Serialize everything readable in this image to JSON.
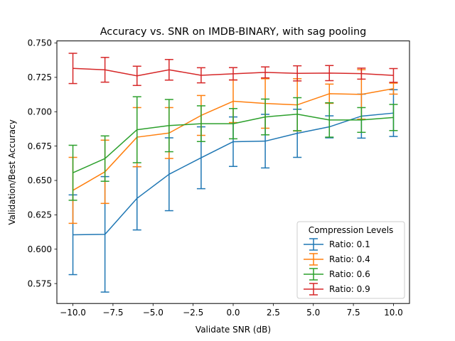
{
  "chart_data": {
    "type": "line",
    "title": "Accuracy vs. SNR on IMDB-BINARY, with sag pooling",
    "xlabel": "Validate SNR (dB)",
    "ylabel": "Validation/Best Accuracy",
    "xlim": [
      -11,
      11
    ],
    "ylim": [
      0.5605,
      0.7515
    ],
    "grid": false,
    "legend_placement": "lower-right",
    "legend_title": "Compression Levels",
    "x": [
      -10,
      -8,
      -6,
      -4,
      -2,
      0,
      2,
      4,
      6,
      8,
      10
    ],
    "x_ticks": [
      -10.0,
      -7.5,
      -5.0,
      -2.5,
      0.0,
      2.5,
      5.0,
      7.5,
      10.0
    ],
    "x_tick_labels": [
      "−10.0",
      "−7.5",
      "−5.0",
      "−2.5",
      "0.0",
      "2.5",
      "5.0",
      "7.5",
      "10.0"
    ],
    "y_ticks": [
      0.575,
      0.6,
      0.625,
      0.65,
      0.675,
      0.7,
      0.725,
      0.75
    ],
    "y_tick_labels": [
      "0.575",
      "0.600",
      "0.625",
      "0.650",
      "0.675",
      "0.700",
      "0.725",
      "0.750"
    ],
    "series": [
      {
        "name": "Ratio: 0.1",
        "color": "#1f77b4",
        "values": [
          0.6105,
          0.6108,
          0.637,
          0.6545,
          0.6665,
          0.6782,
          0.6786,
          0.6843,
          0.689,
          0.6968,
          0.699
        ],
        "err": [
          0.029,
          0.042,
          0.023,
          0.0265,
          0.0225,
          0.018,
          0.0195,
          0.0175,
          0.008,
          0.016,
          0.017
        ]
      },
      {
        "name": "Ratio: 0.4",
        "color": "#ff7f0e",
        "values": [
          0.6428,
          0.6563,
          0.6815,
          0.6845,
          0.6973,
          0.7076,
          0.706,
          0.705,
          0.7131,
          0.7126,
          0.7168
        ],
        "err": [
          0.024,
          0.023,
          0.0215,
          0.0185,
          0.0145,
          0.0155,
          0.018,
          0.019,
          0.007,
          0.018,
          0.004
        ]
      },
      {
        "name": "Ratio: 0.6",
        "color": "#2ca02c",
        "values": [
          0.6556,
          0.6659,
          0.6869,
          0.6899,
          0.6913,
          0.6913,
          0.6962,
          0.6982,
          0.694,
          0.694,
          0.6958
        ],
        "err": [
          0.02,
          0.0165,
          0.024,
          0.019,
          0.013,
          0.011,
          0.013,
          0.012,
          0.0125,
          0.009,
          0.0095
        ]
      },
      {
        "name": "Ratio: 0.9",
        "color": "#d62728",
        "values": [
          0.7315,
          0.7305,
          0.7261,
          0.7305,
          0.7265,
          0.7276,
          0.7286,
          0.7279,
          0.7281,
          0.7277,
          0.7264
        ],
        "err": [
          0.011,
          0.009,
          0.007,
          0.0075,
          0.0055,
          0.0045,
          0.004,
          0.0055,
          0.0055,
          0.004,
          0.005
        ]
      }
    ]
  }
}
